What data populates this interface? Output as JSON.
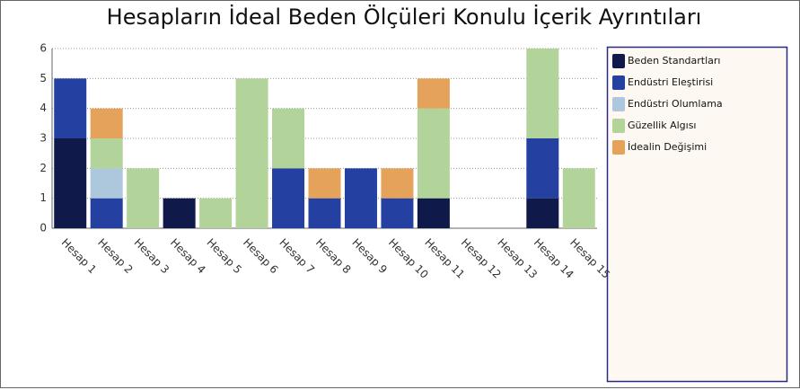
{
  "chart_data": {
    "type": "stacked_bar",
    "title": "Hesapların İdeal Beden Ölçüleri Konulu İçerik Ayrıntıları",
    "categories": [
      "Hesap 1",
      "Hesap 2",
      "Hesap 3",
      "Hesap 4",
      "Hesap 5",
      "Hesap 6",
      "Hesap 7",
      "Hesap 8",
      "Hesap 9",
      "Hesap 10",
      "Hesap 11",
      "Hesap 12",
      "Hesap 13",
      "Hesap 14",
      "Hesap 15"
    ],
    "series": [
      {
        "name": "Beden Standartları",
        "color": "#0f1a4a",
        "values": [
          3,
          0,
          0,
          1,
          0,
          0,
          0,
          0,
          0,
          0,
          1,
          0,
          0,
          1,
          0
        ]
      },
      {
        "name": "Endüstri Eleştirisi",
        "color": "#2440a0",
        "values": [
          2,
          1,
          0,
          0,
          0,
          0,
          2,
          1,
          2,
          1,
          0,
          0,
          0,
          2,
          0
        ]
      },
      {
        "name": "Endüstri Olumlama",
        "color": "#adc8dc",
        "values": [
          0,
          1,
          0,
          0,
          0,
          0,
          0,
          0,
          0,
          0,
          0,
          0,
          0,
          0,
          0
        ]
      },
      {
        "name": "Güzellik Algısı",
        "color": "#b2d39a",
        "values": [
          0,
          1,
          2,
          0,
          1,
          5,
          2,
          0,
          0,
          0,
          3,
          0,
          0,
          3,
          2
        ]
      },
      {
        "name": "İdealin Değişimi",
        "color": "#e4a25a",
        "values": [
          0,
          1,
          0,
          0,
          0,
          0,
          0,
          1,
          0,
          1,
          1,
          0,
          0,
          0,
          0
        ]
      }
    ],
    "ylim": [
      0,
      6
    ],
    "yticks": [
      0,
      1,
      2,
      3,
      4,
      5,
      6
    ],
    "grid": true,
    "legend": "right"
  }
}
